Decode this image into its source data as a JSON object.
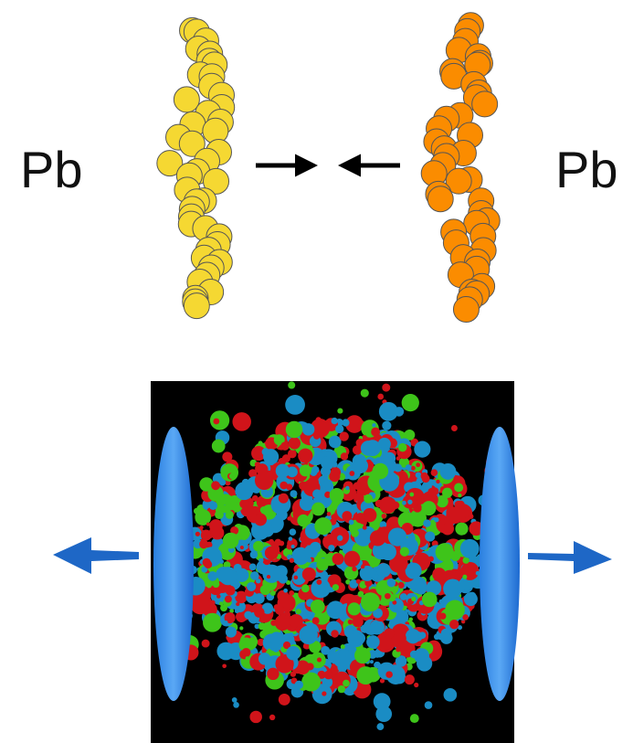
{
  "left_nucleus": {
    "label": "Pb"
  },
  "right_nucleus": {
    "label": "Pb"
  }
}
